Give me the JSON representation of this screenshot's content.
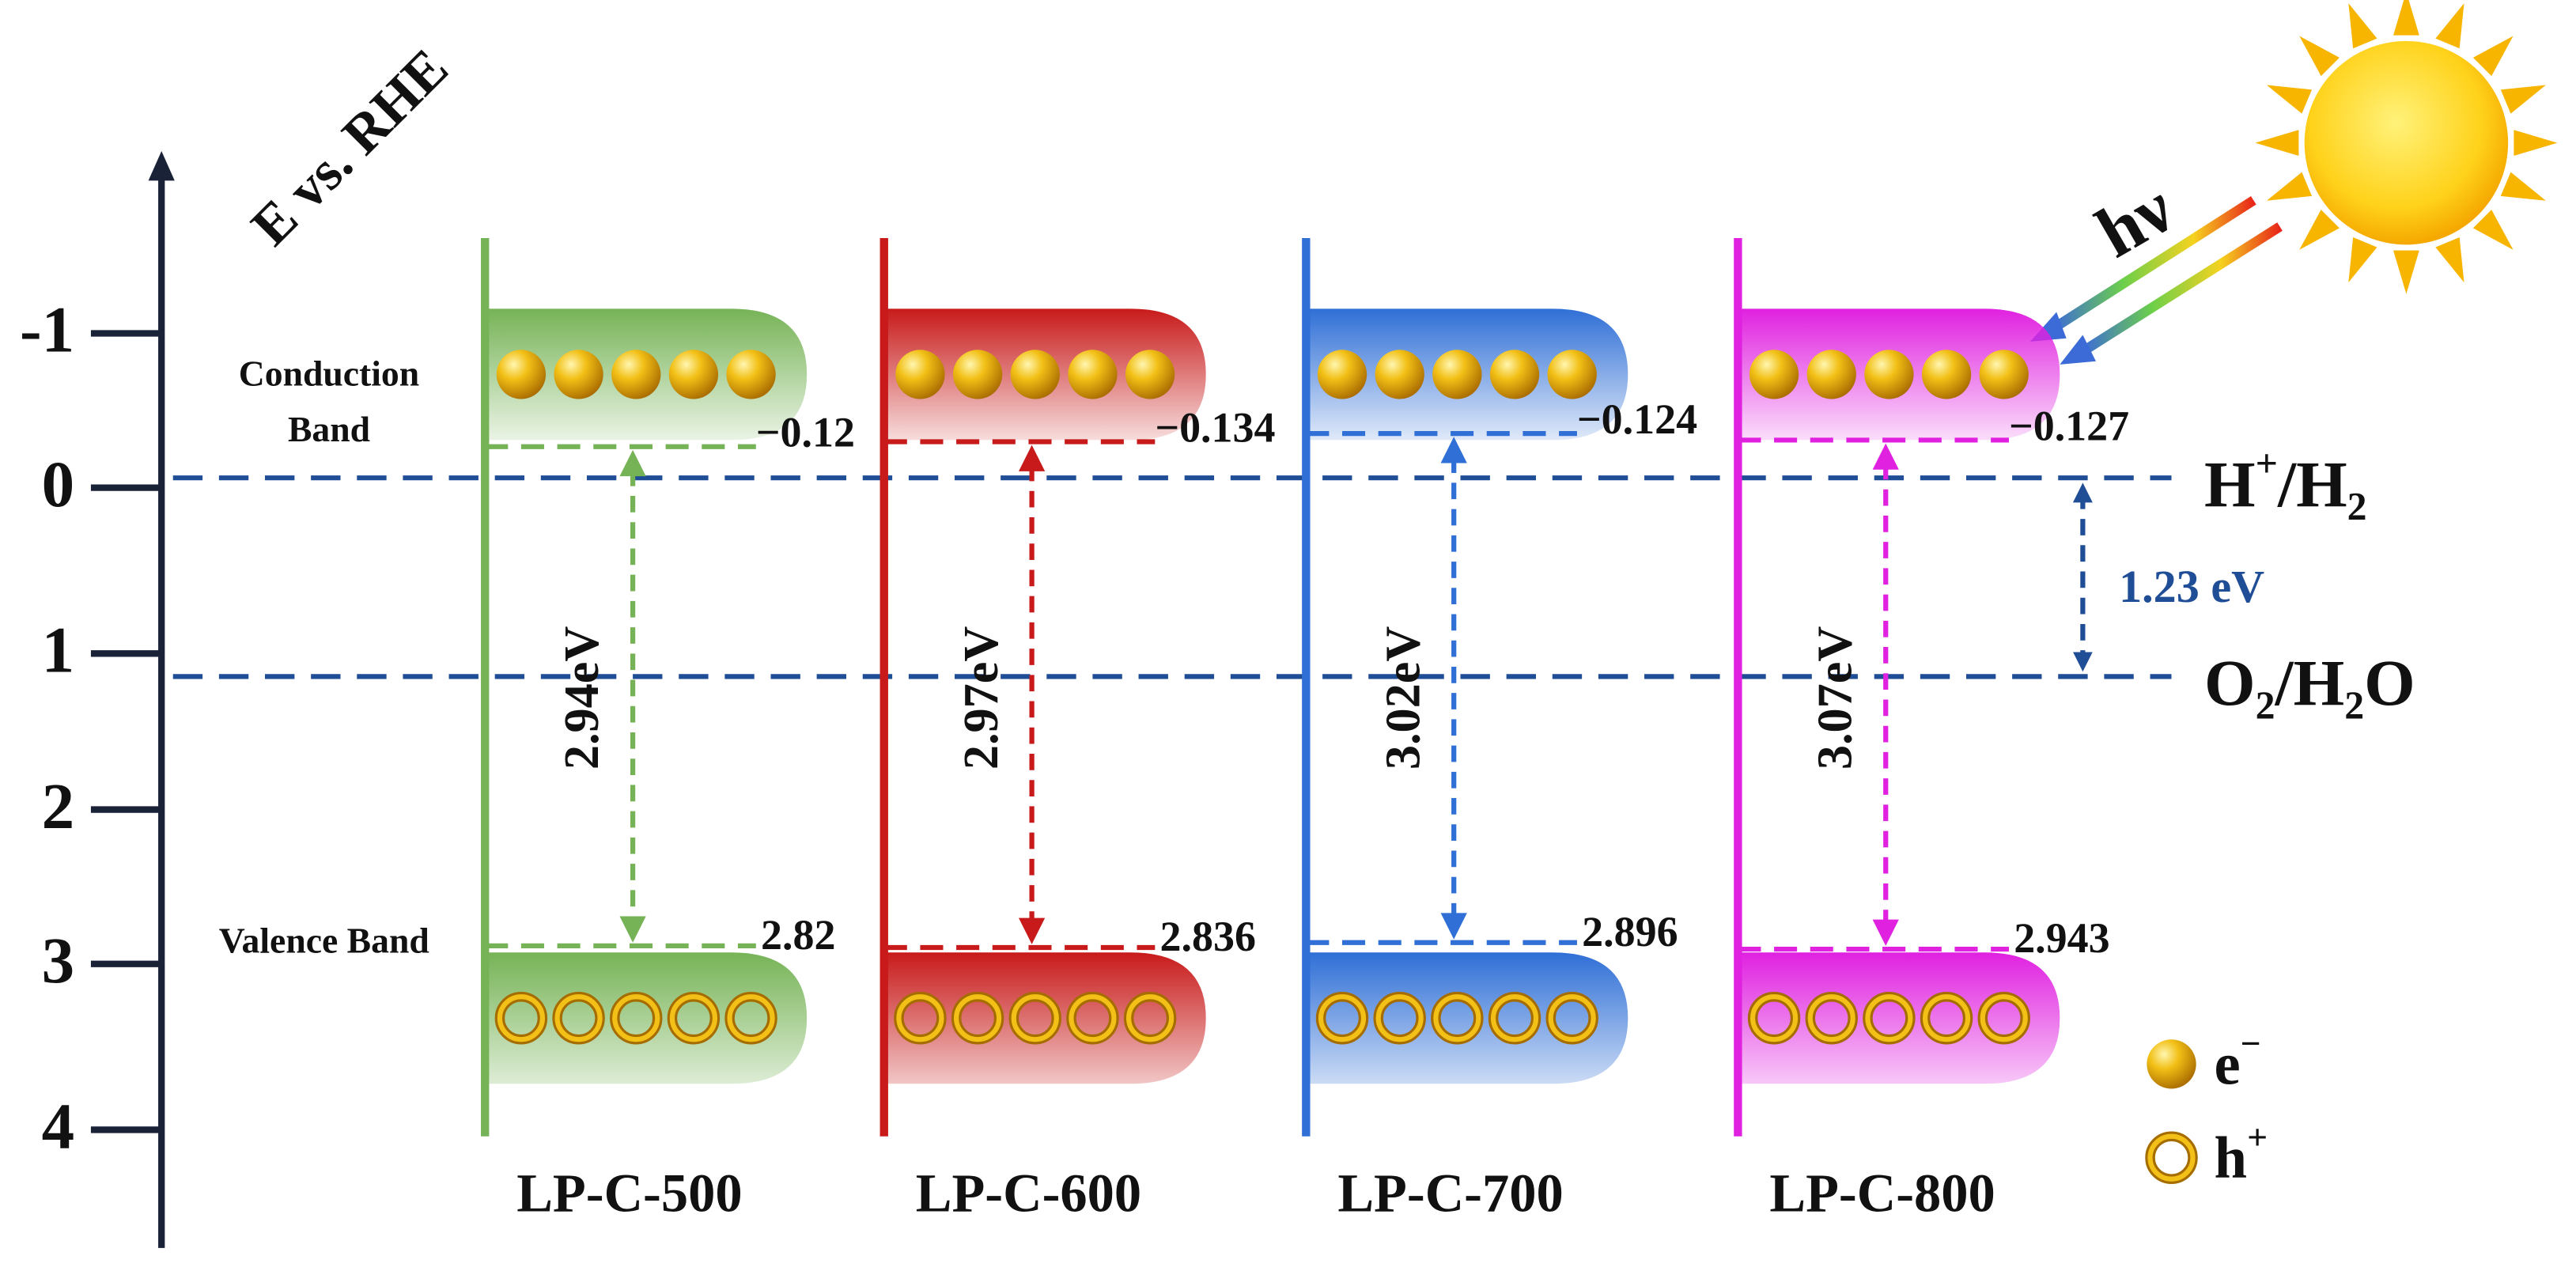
{
  "axis": {
    "title": "E vs. RHE",
    "ticks": [
      "-1",
      "0",
      "1",
      "2",
      "3",
      "4"
    ]
  },
  "band_labels": {
    "conduction": [
      "Conduction",
      "Band"
    ],
    "valence": "Valence Band"
  },
  "levels": [
    {
      "label_parts": [
        "H",
        "+",
        "/H",
        "2"
      ]
    },
    {
      "label_parts": [
        "O",
        "2",
        "/H",
        "2",
        "O"
      ]
    }
  ],
  "potential_gap": "1.23 eV",
  "photon": "hν",
  "samples": [
    {
      "name": "LP-C-500",
      "cb": "−0.12",
      "vb": "2.82",
      "gap": "2.94eV",
      "color": "#76b356"
    },
    {
      "name": "LP-C-600",
      "cb": "−0.134",
      "vb": "2.836",
      "gap": "2.97eV",
      "color": "#c81a1a"
    },
    {
      "name": "LP-C-700",
      "cb": "−0.124",
      "vb": "2.896",
      "gap": "3.02eV",
      "color": "#2f6fd6"
    },
    {
      "name": "LP-C-800",
      "cb": "−0.127",
      "vb": "2.943",
      "gap": "3.07eV",
      "color": "#e021e0"
    }
  ],
  "legend": [
    {
      "label_parts": [
        "e",
        "−"
      ]
    },
    {
      "label_parts": [
        "h",
        "+"
      ]
    }
  ]
}
